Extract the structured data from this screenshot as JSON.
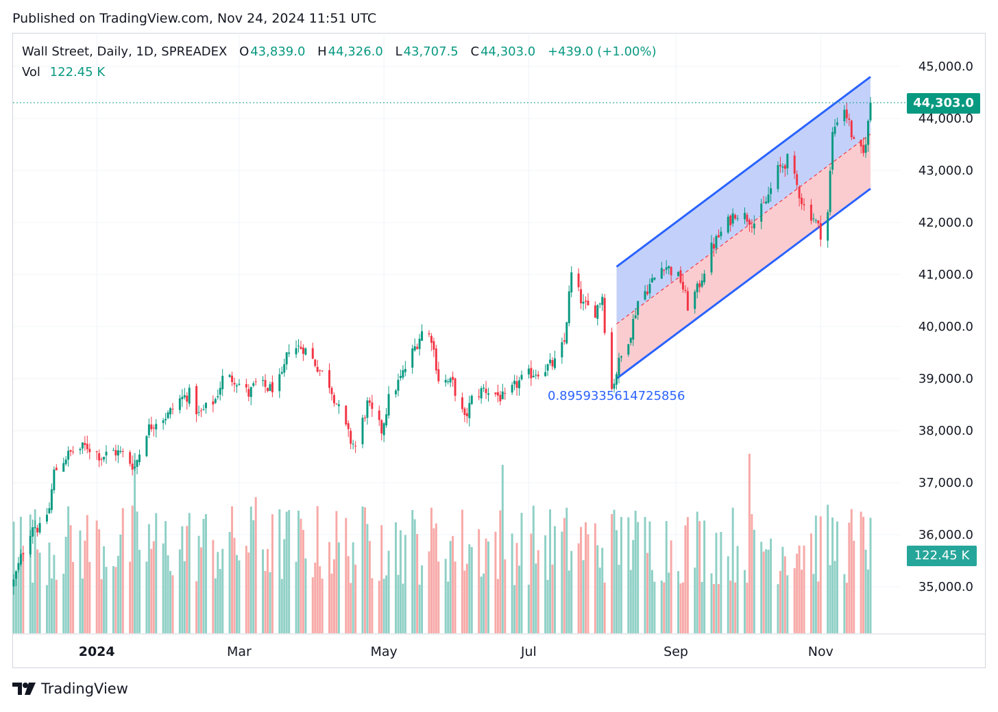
{
  "header": {
    "published": "Published on TradingView.com, Nov 24, 2024 11:51 UTC"
  },
  "legend": {
    "symbol": "Wall Street, Daily, 1D, SPREADEX",
    "o_label": "O",
    "o_value": "43,839.0",
    "h_label": "H",
    "h_value": "44,326.0",
    "l_label": "L",
    "l_value": "43,707.5",
    "c_label": "C",
    "c_value": "44,303.0",
    "change": "+439.0 (+1.00%)",
    "vol_label": "Vol",
    "vol_value": "122.45 K"
  },
  "badges": {
    "last_price": "44,303.0",
    "last_volume": "122.45 K"
  },
  "annotation": {
    "channel_label": "0.8959335614725856"
  },
  "brand": {
    "name": "TradingView"
  },
  "colors": {
    "up": "#089981",
    "down": "#f23645",
    "vol_up": "#8fd0c6",
    "vol_down": "#f7a9a7",
    "channel_line": "#2962ff",
    "channel_upper_fill": "#bcccfa",
    "channel_lower_fill": "#f9c6cb",
    "grid": "#f0f3fa"
  },
  "chart_data": {
    "type": "candlestick",
    "title": "Wall Street, Daily, 1D, SPREADEX",
    "ylim": [
      34500,
      45300
    ],
    "y_ticks": [
      "35,000.0",
      "36,000.0",
      "37,000.0",
      "38,000.0",
      "39,000.0",
      "40,000.0",
      "41,000.0",
      "42,000.0",
      "43,000.0",
      "44,000.0",
      "45,000.0"
    ],
    "x_ticks": [
      "2024",
      "Mar",
      "May",
      "Jul",
      "Sep",
      "Nov"
    ],
    "price_path": [
      [
        "2023-11-27",
        35100
      ],
      [
        "2023-12-01",
        35700
      ],
      [
        "2023-12-05",
        36200
      ],
      [
        "2023-12-08",
        36100
      ],
      [
        "2023-12-12",
        36500
      ],
      [
        "2023-12-14",
        37200
      ],
      [
        "2023-12-19",
        37500
      ],
      [
        "2023-12-22",
        37600
      ],
      [
        "2023-12-28",
        37700
      ],
      [
        "2024-01-03",
        37500
      ],
      [
        "2024-01-08",
        37600
      ],
      [
        "2024-01-12",
        37550
      ],
      [
        "2024-01-17",
        37300
      ],
      [
        "2024-01-22",
        38000
      ],
      [
        "2024-01-26",
        38200
      ],
      [
        "2024-01-31",
        38300
      ],
      [
        "2024-02-05",
        38600
      ],
      [
        "2024-02-09",
        38700
      ],
      [
        "2024-02-13",
        38300
      ],
      [
        "2024-02-20",
        38600
      ],
      [
        "2024-02-23",
        39000
      ],
      [
        "2024-02-28",
        39000
      ],
      [
        "2024-03-05",
        38700
      ],
      [
        "2024-03-08",
        38900
      ],
      [
        "2024-03-14",
        38800
      ],
      [
        "2024-03-19",
        39000
      ],
      [
        "2024-03-22",
        39600
      ],
      [
        "2024-03-28",
        39600
      ],
      [
        "2024-04-02",
        39300
      ],
      [
        "2024-04-08",
        38900
      ],
      [
        "2024-04-12",
        38400
      ],
      [
        "2024-04-17",
        37800
      ],
      [
        "2024-04-19",
        37700
      ],
      [
        "2024-04-24",
        38500
      ],
      [
        "2024-04-30",
        38000
      ],
      [
        "2024-05-03",
        38600
      ],
      [
        "2024-05-08",
        39000
      ],
      [
        "2024-05-13",
        39500
      ],
      [
        "2024-05-17",
        39900
      ],
      [
        "2024-05-21",
        39800
      ],
      [
        "2024-05-24",
        39000
      ],
      [
        "2024-05-30",
        38900
      ],
      [
        "2024-06-04",
        38200
      ],
      [
        "2024-06-07",
        38600
      ],
      [
        "2024-06-12",
        38800
      ],
      [
        "2024-06-17",
        38700
      ],
      [
        "2024-06-21",
        38600
      ],
      [
        "2024-06-26",
        38900
      ],
      [
        "2024-07-02",
        39100
      ],
      [
        "2024-07-08",
        39200
      ],
      [
        "2024-07-12",
        39300
      ],
      [
        "2024-07-16",
        39700
      ],
      [
        "2024-07-18",
        40600
      ],
      [
        "2024-07-19",
        41000
      ],
      [
        "2024-07-24",
        40400
      ],
      [
        "2024-07-29",
        40300
      ],
      [
        "2024-08-01",
        40600
      ],
      [
        "2024-08-02",
        40000
      ],
      [
        "2024-08-05",
        38800
      ],
      [
        "2024-08-08",
        39300
      ],
      [
        "2024-08-13",
        39900
      ],
      [
        "2024-08-16",
        40500
      ],
      [
        "2024-08-21",
        40800
      ],
      [
        "2024-08-27",
        41200
      ],
      [
        "2024-09-03",
        40900
      ],
      [
        "2024-09-06",
        40400
      ],
      [
        "2024-09-10",
        40700
      ],
      [
        "2024-09-16",
        41500
      ],
      [
        "2024-09-20",
        41800
      ],
      [
        "2024-09-26",
        42200
      ],
      [
        "2024-10-01",
        42100
      ],
      [
        "2024-10-04",
        42000
      ],
      [
        "2024-10-09",
        42400
      ],
      [
        "2024-10-14",
        43000
      ],
      [
        "2024-10-18",
        43200
      ],
      [
        "2024-10-22",
        42700
      ],
      [
        "2024-10-25",
        42300
      ],
      [
        "2024-10-29",
        42100
      ],
      [
        "2024-11-01",
        41800
      ],
      [
        "2024-11-04",
        42200
      ],
      [
        "2024-11-06",
        43700
      ],
      [
        "2024-11-08",
        44000
      ],
      [
        "2024-11-11",
        44200
      ],
      [
        "2024-11-13",
        43900
      ],
      [
        "2024-11-15",
        43500
      ],
      [
        "2024-11-19",
        43300
      ],
      [
        "2024-11-21",
        43900
      ],
      [
        "2024-11-22",
        44303
      ]
    ],
    "channel": {
      "start_date": "2024-08-07",
      "end_date": "2024-11-22",
      "upper_start": 41150,
      "upper_end": 44800,
      "middle_start": 40050,
      "middle_end": 43700,
      "lower_start": 39000,
      "lower_end": 42650
    },
    "last_close": 44303.0,
    "last_volume": "122.45 K"
  }
}
